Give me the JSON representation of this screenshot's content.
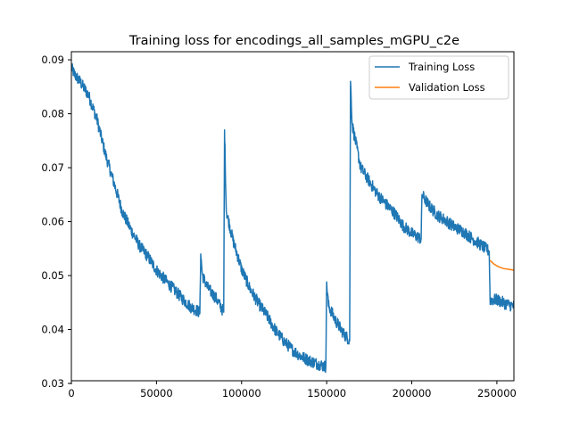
{
  "chart_data": {
    "type": "line",
    "title": "Training loss for encodings_all_samples_mGPU_c2e",
    "xlabel": "",
    "ylabel": "",
    "xlim": [
      0,
      260000
    ],
    "ylim": [
      0.0305,
      0.0915
    ],
    "x_ticks": [
      0,
      50000,
      100000,
      150000,
      200000,
      250000
    ],
    "x_tick_labels": [
      "0",
      "50000",
      "100000",
      "150000",
      "200000",
      "250000"
    ],
    "y_ticks": [
      0.03,
      0.04,
      0.05,
      0.06,
      0.07,
      0.08,
      0.09
    ],
    "y_tick_labels": [
      "0.03",
      "0.04",
      "0.05",
      "0.06",
      "0.07",
      "0.08",
      "0.09"
    ],
    "grid": false,
    "legend_position": "top-right",
    "series": [
      {
        "name": "Training Loss",
        "color": "#1f77b4",
        "noise": 0.0011,
        "points": [
          [
            0,
            0.0885
          ],
          [
            2000,
            0.0872
          ],
          [
            5000,
            0.086
          ],
          [
            10000,
            0.0835
          ],
          [
            15000,
            0.079
          ],
          [
            20000,
            0.0725
          ],
          [
            25000,
            0.0672
          ],
          [
            30000,
            0.0618
          ],
          [
            35000,
            0.0585
          ],
          [
            40000,
            0.0555
          ],
          [
            45000,
            0.0535
          ],
          [
            50000,
            0.051
          ],
          [
            55000,
            0.0492
          ],
          [
            60000,
            0.0475
          ],
          [
            65000,
            0.0458
          ],
          [
            70000,
            0.0442
          ],
          [
            75500,
            0.0432
          ],
          [
            76000,
            0.054
          ],
          [
            77000,
            0.05
          ],
          [
            80000,
            0.0478
          ],
          [
            85000,
            0.0458
          ],
          [
            89500,
            0.0432
          ],
          [
            90000,
            0.077
          ],
          [
            91000,
            0.062
          ],
          [
            95000,
            0.0565
          ],
          [
            100000,
            0.0512
          ],
          [
            105000,
            0.0475
          ],
          [
            110000,
            0.0448
          ],
          [
            115000,
            0.0425
          ],
          [
            120000,
            0.0398
          ],
          [
            125000,
            0.0378
          ],
          [
            130000,
            0.0362
          ],
          [
            135000,
            0.035
          ],
          [
            140000,
            0.0342
          ],
          [
            145000,
            0.0336
          ],
          [
            149500,
            0.0331
          ],
          [
            150000,
            0.0488
          ],
          [
            151000,
            0.0445
          ],
          [
            155000,
            0.0418
          ],
          [
            160000,
            0.0392
          ],
          [
            163500,
            0.038
          ],
          [
            164000,
            0.086
          ],
          [
            165000,
            0.078
          ],
          [
            170000,
            0.07
          ],
          [
            175000,
            0.0675
          ],
          [
            180000,
            0.065
          ],
          [
            185000,
            0.0632
          ],
          [
            190000,
            0.0615
          ],
          [
            195000,
            0.0592
          ],
          [
            200000,
            0.0578
          ],
          [
            205500,
            0.0568
          ],
          [
            206000,
            0.065
          ],
          [
            210000,
            0.063
          ],
          [
            215000,
            0.0612
          ],
          [
            220000,
            0.0602
          ],
          [
            225000,
            0.059
          ],
          [
            230000,
            0.0582
          ],
          [
            235000,
            0.057
          ],
          [
            240000,
            0.0558
          ],
          [
            245500,
            0.0545
          ],
          [
            246000,
            0.0455
          ],
          [
            250000,
            0.0455
          ],
          [
            255000,
            0.0448
          ],
          [
            260000,
            0.0443
          ]
        ]
      },
      {
        "name": "Validation Loss",
        "color": "#ff7f0e",
        "noise": 0,
        "points": [
          [
            246000,
            0.0528
          ],
          [
            248000,
            0.0522
          ],
          [
            250000,
            0.0518
          ],
          [
            252000,
            0.0515
          ],
          [
            254000,
            0.0513
          ],
          [
            256000,
            0.0512
          ],
          [
            258000,
            0.0511
          ],
          [
            260000,
            0.051
          ]
        ]
      }
    ]
  }
}
